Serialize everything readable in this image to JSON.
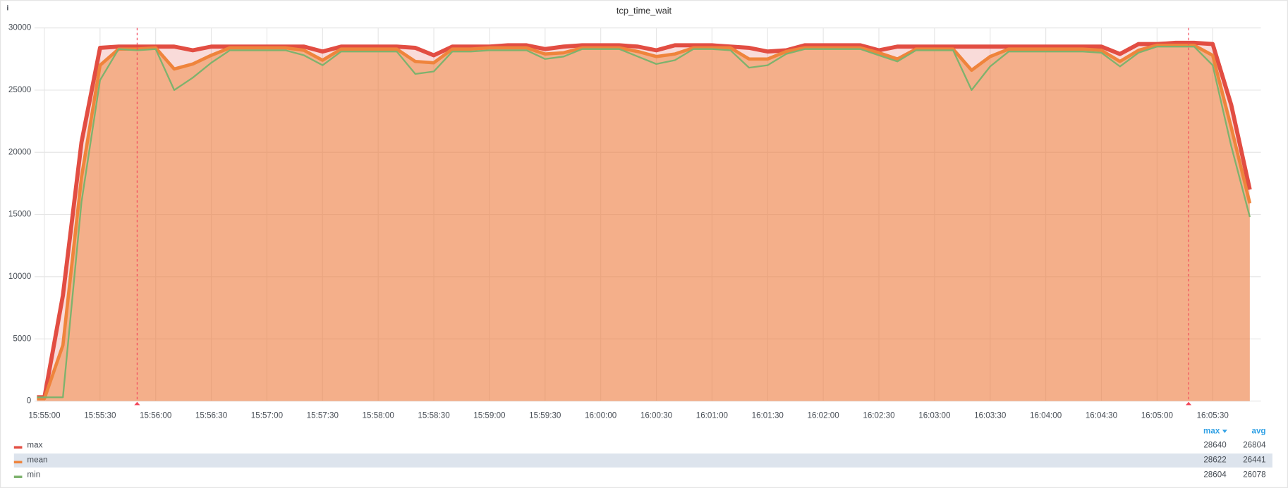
{
  "chart_data": {
    "type": "line",
    "title": "tcp_time_wait",
    "info_icon": "i",
    "x": [
      "15:54:56",
      "15:55:00",
      "15:55:10",
      "15:55:20",
      "15:55:30",
      "15:55:40",
      "15:55:50",
      "15:56:00",
      "15:56:10",
      "15:56:20",
      "15:56:30",
      "15:56:40",
      "15:56:50",
      "15:57:00",
      "15:57:10",
      "15:57:20",
      "15:57:30",
      "15:57:40",
      "15:57:50",
      "15:58:00",
      "15:58:10",
      "15:58:20",
      "15:58:30",
      "15:58:40",
      "15:58:50",
      "15:59:00",
      "15:59:10",
      "15:59:20",
      "15:59:30",
      "15:59:40",
      "15:59:50",
      "16:00:00",
      "16:00:10",
      "16:00:20",
      "16:00:30",
      "16:00:40",
      "16:00:50",
      "16:01:00",
      "16:01:10",
      "16:01:20",
      "16:01:30",
      "16:01:40",
      "16:01:50",
      "16:02:00",
      "16:02:10",
      "16:02:20",
      "16:02:30",
      "16:02:40",
      "16:02:50",
      "16:03:00",
      "16:03:10",
      "16:03:20",
      "16:03:30",
      "16:03:40",
      "16:03:50",
      "16:04:00",
      "16:04:10",
      "16:04:20",
      "16:04:30",
      "16:04:40",
      "16:04:50",
      "16:05:00",
      "16:05:10",
      "16:05:20",
      "16:05:30",
      "16:05:40",
      "16:05:50"
    ],
    "series": [
      {
        "name": "max",
        "color": "#e24d42",
        "stats": [
          28640,
          26804
        ],
        "values": [
          300,
          300,
          8500,
          20800,
          28400,
          28500,
          28500,
          28500,
          28500,
          28200,
          28500,
          28500,
          28500,
          28500,
          28500,
          28500,
          28100,
          28500,
          28500,
          28500,
          28500,
          28400,
          27800,
          28500,
          28500,
          28500,
          28600,
          28600,
          28300,
          28500,
          28600,
          28600,
          28600,
          28500,
          28200,
          28600,
          28600,
          28600,
          28500,
          28400,
          28100,
          28200,
          28600,
          28600,
          28600,
          28600,
          28200,
          28500,
          28500,
          28500,
          28500,
          28500,
          28500,
          28500,
          28500,
          28500,
          28500,
          28500,
          28500,
          27900,
          28700,
          28700,
          28800,
          28800,
          28700,
          23800,
          17000
        ]
      },
      {
        "name": "mean",
        "color": "#ef843c",
        "stats": [
          28622,
          26441
        ],
        "values": [
          200,
          200,
          4500,
          18000,
          27000,
          28300,
          28300,
          28400,
          26700,
          27100,
          27800,
          28400,
          28400,
          28400,
          28400,
          28200,
          27400,
          28300,
          28300,
          28300,
          28300,
          27300,
          27200,
          28300,
          28300,
          28400,
          28400,
          28400,
          27900,
          28000,
          28400,
          28400,
          28400,
          28100,
          27700,
          27900,
          28400,
          28400,
          28400,
          27500,
          27500,
          28100,
          28400,
          28400,
          28400,
          28400,
          28000,
          27500,
          28300,
          28300,
          28300,
          26600,
          27700,
          28300,
          28300,
          28300,
          28300,
          28300,
          28200,
          27300,
          28200,
          28600,
          28600,
          28600,
          27800,
          22000,
          15900
        ]
      },
      {
        "name": "min",
        "color": "#7eb26d",
        "stats": [
          28604,
          26078
        ],
        "values": [
          300,
          300,
          300,
          16000,
          25800,
          28300,
          28200,
          28300,
          25000,
          26000,
          27200,
          28200,
          28200,
          28200,
          28200,
          27800,
          27000,
          28100,
          28100,
          28100,
          28100,
          26300,
          26500,
          28100,
          28100,
          28200,
          28200,
          28200,
          27500,
          27700,
          28300,
          28300,
          28300,
          27700,
          27100,
          27400,
          28300,
          28300,
          28200,
          26800,
          27000,
          27900,
          28300,
          28300,
          28300,
          28300,
          27800,
          27300,
          28200,
          28200,
          28200,
          25000,
          26900,
          28100,
          28100,
          28100,
          28100,
          28100,
          28000,
          26900,
          28000,
          28500,
          28500,
          28500,
          27000,
          20500,
          14800
        ]
      }
    ],
    "legend_columns": [
      "max",
      "avg"
    ],
    "xlim": [
      "15:54:52",
      "16:05:56"
    ],
    "xticks": [
      "15:55:00",
      "15:55:30",
      "15:56:00",
      "15:56:30",
      "15:57:00",
      "15:57:30",
      "15:58:00",
      "15:58:30",
      "15:59:00",
      "15:59:30",
      "16:00:00",
      "16:00:30",
      "16:01:00",
      "16:01:30",
      "16:02:00",
      "16:02:30",
      "16:03:00",
      "16:03:30",
      "16:04:00",
      "16:04:30",
      "16:05:00",
      "16:05:30"
    ],
    "ylim": [
      0,
      30000
    ],
    "yticks": [
      0,
      5000,
      10000,
      15000,
      20000,
      25000,
      30000
    ],
    "grid": true,
    "annotations": {
      "color": "#f2495c",
      "x": [
        "15:55:50",
        "16:05:17"
      ]
    }
  }
}
